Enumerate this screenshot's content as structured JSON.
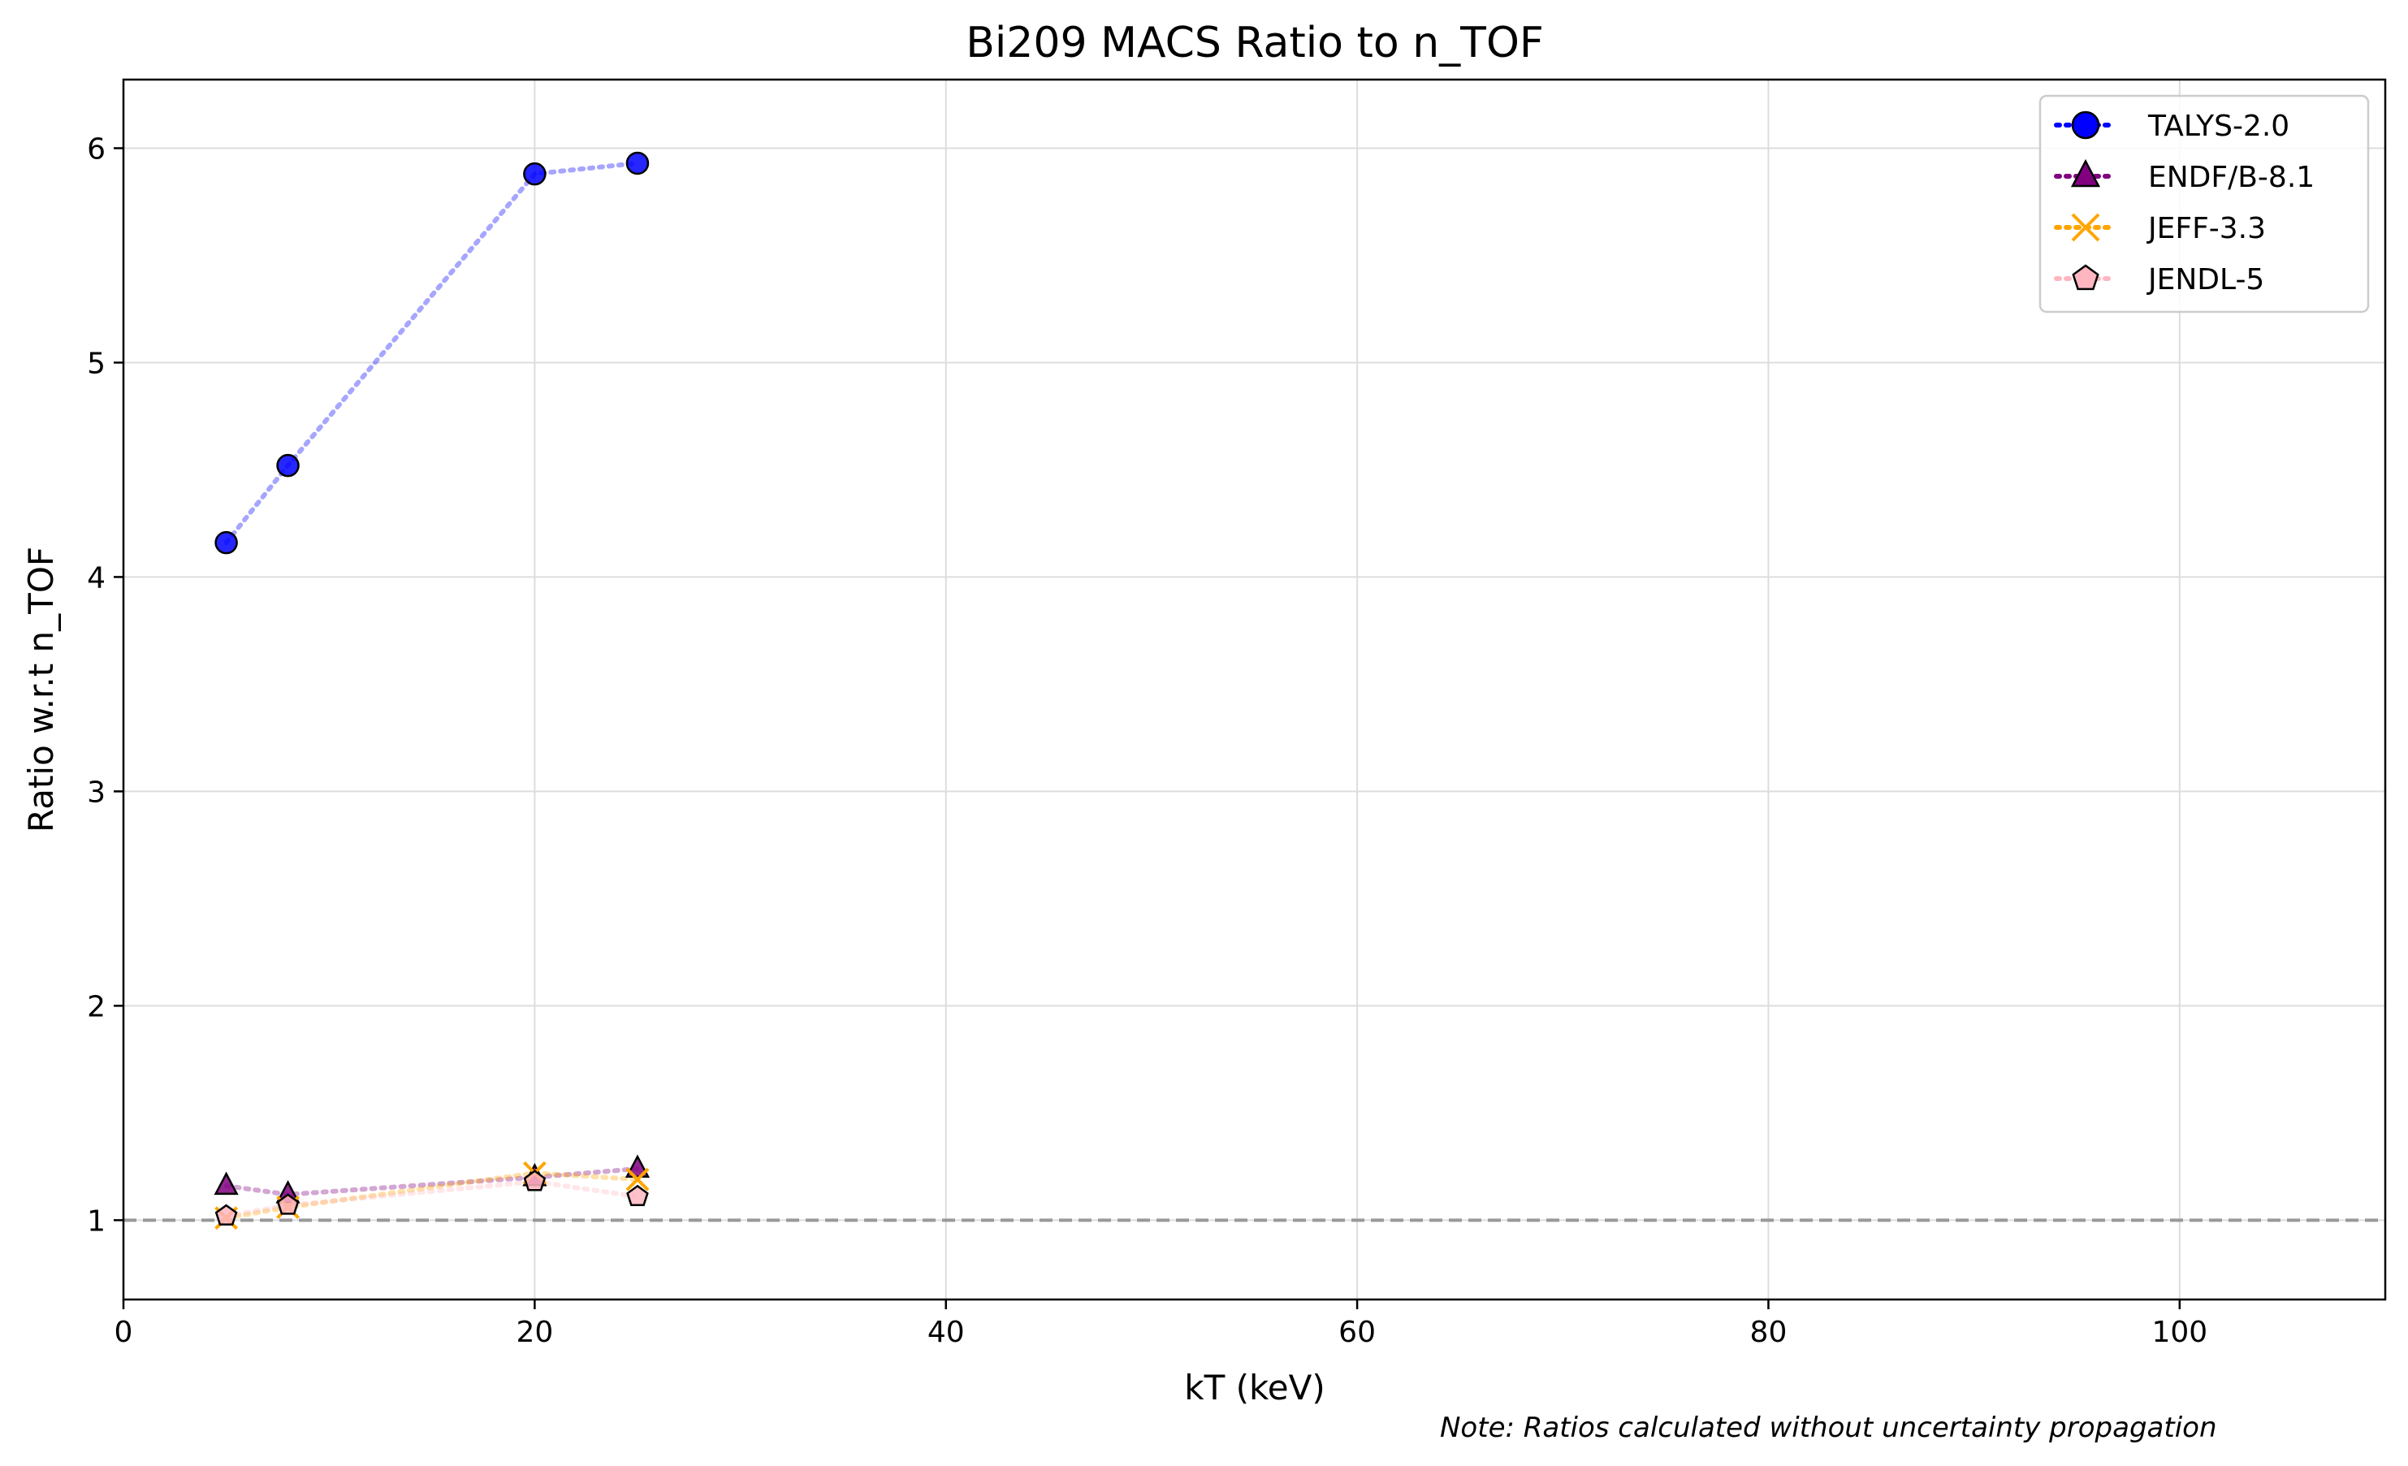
{
  "chart_data": {
    "type": "line",
    "title": "Bi209 MACS Ratio to n_TOF",
    "xlabel": "kT (keV)",
    "ylabel": "Ratio w.r.t n_TOF",
    "xlim": [
      0,
      110
    ],
    "ylim": [
      0.63,
      6.32
    ],
    "x_ticks": [
      0,
      20,
      40,
      60,
      80,
      100
    ],
    "y_ticks": [
      1,
      2,
      3,
      4,
      5,
      6
    ],
    "grid": true,
    "legend_position": "top-right",
    "reference_line": {
      "y": 1,
      "style": "dashed",
      "color": "#999999"
    },
    "series": [
      {
        "name": "TALYS-2.0",
        "marker": "circle",
        "color": "#0000ff",
        "x": [
          5,
          8,
          20,
          25
        ],
        "values": [
          4.16,
          4.52,
          5.88,
          5.93
        ]
      },
      {
        "name": "ENDF/B-8.1",
        "marker": "triangle",
        "color": "#800080",
        "x": [
          5,
          8,
          20,
          25
        ],
        "values": [
          1.16,
          1.12,
          1.2,
          1.24
        ]
      },
      {
        "name": "JEFF-3.3",
        "marker": "x",
        "color": "#ffa500",
        "x": [
          5,
          8,
          20,
          25
        ],
        "values": [
          1.01,
          1.06,
          1.22,
          1.19
        ]
      },
      {
        "name": "JENDL-5",
        "marker": "pentagon",
        "color": "#ffb6c1",
        "x": [
          5,
          8,
          20,
          25
        ],
        "values": [
          1.02,
          1.07,
          1.18,
          1.11
        ]
      }
    ]
  },
  "note": "Note: Ratios calculated without uncertainty propagation"
}
